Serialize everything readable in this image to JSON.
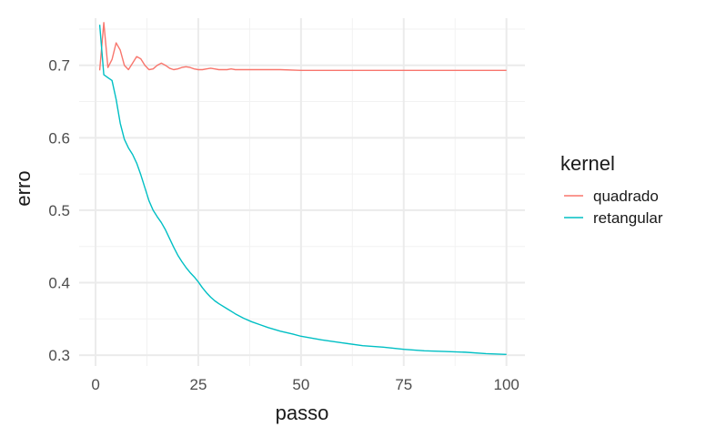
{
  "chart_data": {
    "type": "line",
    "xlabel": "passo",
    "ylabel": "erro",
    "xlim": [
      -4,
      104.5
    ],
    "ylim": [
      0.285,
      0.765
    ],
    "x_ticks": [
      0,
      25,
      50,
      75,
      100
    ],
    "x_tick_labels": [
      "0",
      "25",
      "50",
      "75",
      "100"
    ],
    "x_minor_ticks": [
      12.5,
      37.5,
      62.5,
      87.5
    ],
    "y_ticks": [
      0.3,
      0.4,
      0.5,
      0.6,
      0.7
    ],
    "y_tick_labels": [
      "0.3",
      "0.4",
      "0.5",
      "0.6",
      "0.7"
    ],
    "y_minor_ticks": [
      0.35,
      0.45,
      0.55,
      0.65,
      0.75
    ],
    "grid": true,
    "legend": {
      "title": "kernel",
      "position": "right"
    },
    "series": [
      {
        "name": "quadrado",
        "color": "#F8766D",
        "points": [
          [
            1,
            0.693
          ],
          [
            2,
            0.759
          ],
          [
            3,
            0.697
          ],
          [
            4,
            0.708
          ],
          [
            5,
            0.731
          ],
          [
            6,
            0.721
          ],
          [
            7,
            0.7
          ],
          [
            8,
            0.694
          ],
          [
            9,
            0.703
          ],
          [
            10,
            0.712
          ],
          [
            11,
            0.709
          ],
          [
            12,
            0.7
          ],
          [
            13,
            0.694
          ],
          [
            14,
            0.695
          ],
          [
            15,
            0.7
          ],
          [
            16,
            0.703
          ],
          [
            17,
            0.7
          ],
          [
            18,
            0.696
          ],
          [
            19,
            0.694
          ],
          [
            20,
            0.695
          ],
          [
            21,
            0.697
          ],
          [
            22,
            0.698
          ],
          [
            23,
            0.697
          ],
          [
            24,
            0.695
          ],
          [
            25,
            0.694
          ],
          [
            26,
            0.694
          ],
          [
            27,
            0.695
          ],
          [
            28,
            0.696
          ],
          [
            29,
            0.695
          ],
          [
            30,
            0.694
          ],
          [
            31,
            0.694
          ],
          [
            32,
            0.694
          ],
          [
            33,
            0.695
          ],
          [
            34,
            0.694
          ],
          [
            35,
            0.694
          ],
          [
            36,
            0.694
          ],
          [
            38,
            0.694
          ],
          [
            40,
            0.694
          ],
          [
            45,
            0.694
          ],
          [
            50,
            0.693
          ],
          [
            60,
            0.693
          ],
          [
            70,
            0.693
          ],
          [
            80,
            0.693
          ],
          [
            90,
            0.693
          ],
          [
            100,
            0.693
          ]
        ]
      },
      {
        "name": "retangular",
        "color": "#00BFC4",
        "points": [
          [
            1,
            0.756
          ],
          [
            2,
            0.687
          ],
          [
            3,
            0.683
          ],
          [
            4,
            0.679
          ],
          [
            5,
            0.653
          ],
          [
            6,
            0.62
          ],
          [
            7,
            0.598
          ],
          [
            8,
            0.586
          ],
          [
            9,
            0.577
          ],
          [
            10,
            0.565
          ],
          [
            11,
            0.549
          ],
          [
            12,
            0.531
          ],
          [
            13,
            0.513
          ],
          [
            14,
            0.5
          ],
          [
            15,
            0.491
          ],
          [
            16,
            0.483
          ],
          [
            17,
            0.473
          ],
          [
            18,
            0.461
          ],
          [
            19,
            0.449
          ],
          [
            20,
            0.438
          ],
          [
            21,
            0.429
          ],
          [
            22,
            0.421
          ],
          [
            23,
            0.414
          ],
          [
            24,
            0.408
          ],
          [
            25,
            0.401
          ],
          [
            26,
            0.393
          ],
          [
            27,
            0.386
          ],
          [
            28,
            0.38
          ],
          [
            29,
            0.375
          ],
          [
            30,
            0.371
          ],
          [
            32,
            0.364
          ],
          [
            34,
            0.357
          ],
          [
            36,
            0.351
          ],
          [
            38,
            0.346
          ],
          [
            40,
            0.342
          ],
          [
            42,
            0.338
          ],
          [
            45,
            0.333
          ],
          [
            48,
            0.329
          ],
          [
            50,
            0.326
          ],
          [
            55,
            0.321
          ],
          [
            60,
            0.317
          ],
          [
            65,
            0.313
          ],
          [
            70,
            0.311
          ],
          [
            75,
            0.308
          ],
          [
            80,
            0.306
          ],
          [
            85,
            0.305
          ],
          [
            90,
            0.304
          ],
          [
            95,
            0.302
          ],
          [
            100,
            0.301
          ]
        ]
      }
    ]
  }
}
